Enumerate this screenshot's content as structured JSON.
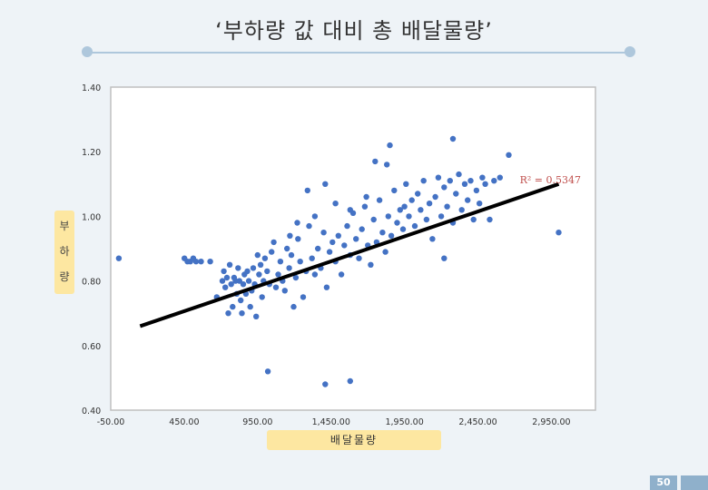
{
  "slide": {
    "title": "‘부하량 값 대비 총 배달물량’",
    "page_number": "50"
  },
  "colors": {
    "point": "#4472c4",
    "trend": "#000000",
    "label_box": "#fde7a1",
    "r2_text": "#c0504d"
  },
  "chart_data": {
    "type": "scatter",
    "title": "‘부하량 값 대비 총 배달물량’",
    "xlabel": "배달물량",
    "ylabel": "부하량",
    "ylabel_chars": [
      "부",
      "하",
      "량"
    ],
    "xlim": [
      -50,
      3250
    ],
    "ylim": [
      0.4,
      1.4
    ],
    "xticks": [
      -50,
      450,
      950,
      1450,
      1950,
      2450,
      2950
    ],
    "xtick_labels": [
      "-50.00",
      "450.00",
      "950.00",
      "1,450.00",
      "1,950.00",
      "2,450.00",
      "2,950.00"
    ],
    "yticks": [
      0.4,
      0.6,
      0.8,
      1.0,
      1.2,
      1.4
    ],
    "ytick_labels": [
      "0.40",
      "0.60",
      "0.80",
      "1.00",
      "1.20",
      "1.40"
    ],
    "trendline": {
      "x": [
        150,
        3000
      ],
      "y": [
        0.66,
        1.1
      ]
    },
    "r2_label": "R² = 0.5347",
    "grid": false,
    "series": [
      {
        "points": [
          [
            5,
            0.87
          ],
          [
            452,
            0.87
          ],
          [
            472,
            0.86
          ],
          [
            492,
            0.86
          ],
          [
            512,
            0.87
          ],
          [
            531,
            0.86
          ],
          [
            565,
            0.86
          ],
          [
            627,
            0.86
          ],
          [
            672,
            0.75
          ],
          [
            710,
            0.8
          ],
          [
            720,
            0.83
          ],
          [
            730,
            0.78
          ],
          [
            741,
            0.81
          ],
          [
            750,
            0.7
          ],
          [
            760,
            0.85
          ],
          [
            770,
            0.79
          ],
          [
            780,
            0.72
          ],
          [
            790,
            0.81
          ],
          [
            800,
            0.8
          ],
          [
            808,
            0.76
          ],
          [
            817,
            0.84
          ],
          [
            826,
            0.8
          ],
          [
            835,
            0.74
          ],
          [
            843,
            0.7
          ],
          [
            852,
            0.79
          ],
          [
            860,
            0.82
          ],
          [
            870,
            0.76
          ],
          [
            880,
            0.83
          ],
          [
            890,
            0.8
          ],
          [
            900,
            0.72
          ],
          [
            910,
            0.77
          ],
          [
            920,
            0.84
          ],
          [
            930,
            0.79
          ],
          [
            940,
            0.69
          ],
          [
            950,
            0.88
          ],
          [
            960,
            0.82
          ],
          [
            970,
            0.85
          ],
          [
            980,
            0.75
          ],
          [
            990,
            0.8
          ],
          [
            1000,
            0.87
          ],
          [
            1015,
            0.83
          ],
          [
            1030,
            0.79
          ],
          [
            1045,
            0.89
          ],
          [
            1060,
            0.92
          ],
          [
            1075,
            0.78
          ],
          [
            1090,
            0.82
          ],
          [
            1105,
            0.86
          ],
          [
            1120,
            0.8
          ],
          [
            1135,
            0.77
          ],
          [
            1150,
            0.9
          ],
          [
            1165,
            0.84
          ],
          [
            1180,
            0.88
          ],
          [
            1195,
            0.72
          ],
          [
            1210,
            0.81
          ],
          [
            1225,
            0.93
          ],
          [
            1240,
            0.86
          ],
          [
            1260,
            0.75
          ],
          [
            1280,
            0.83
          ],
          [
            1300,
            0.97
          ],
          [
            1320,
            0.87
          ],
          [
            1340,
            0.82
          ],
          [
            1360,
            0.9
          ],
          [
            1380,
            0.84
          ],
          [
            1400,
            0.95
          ],
          [
            1420,
            0.78
          ],
          [
            1440,
            0.89
          ],
          [
            1460,
            0.92
          ],
          [
            1480,
            0.86
          ],
          [
            1500,
            0.94
          ],
          [
            1520,
            0.82
          ],
          [
            1540,
            0.91
          ],
          [
            1560,
            0.97
          ],
          [
            1580,
            0.88
          ],
          [
            1600,
            1.01
          ],
          [
            1620,
            0.93
          ],
          [
            1640,
            0.87
          ],
          [
            1660,
            0.96
          ],
          [
            1680,
            1.03
          ],
          [
            1700,
            0.91
          ],
          [
            1720,
            0.85
          ],
          [
            1740,
            0.99
          ],
          [
            1760,
            0.92
          ],
          [
            1780,
            1.05
          ],
          [
            1800,
            0.95
          ],
          [
            1820,
            0.89
          ],
          [
            1840,
            1.0
          ],
          [
            1860,
            0.94
          ],
          [
            1880,
            1.08
          ],
          [
            1900,
            0.98
          ],
          [
            1920,
            1.02
          ],
          [
            1940,
            0.96
          ],
          [
            1960,
            1.1
          ],
          [
            1980,
            1.0
          ],
          [
            2000,
            1.05
          ],
          [
            2020,
            0.97
          ],
          [
            2040,
            1.07
          ],
          [
            2060,
            1.02
          ],
          [
            2080,
            1.11
          ],
          [
            2100,
            0.99
          ],
          [
            2120,
            1.04
          ],
          [
            2140,
            0.93
          ],
          [
            2160,
            1.06
          ],
          [
            2180,
            1.12
          ],
          [
            2200,
            1.0
          ],
          [
            2220,
            1.09
          ],
          [
            2240,
            1.03
          ],
          [
            2260,
            1.11
          ],
          [
            2280,
            0.98
          ],
          [
            2300,
            1.07
          ],
          [
            2320,
            1.13
          ],
          [
            2340,
            1.02
          ],
          [
            2360,
            1.1
          ],
          [
            2380,
            1.05
          ],
          [
            2400,
            1.11
          ],
          [
            2420,
            0.99
          ],
          [
            2440,
            1.08
          ],
          [
            2460,
            1.04
          ],
          [
            2480,
            1.12
          ],
          [
            2500,
            1.1
          ],
          [
            2530,
            0.99
          ],
          [
            2560,
            1.11
          ],
          [
            2600,
            1.12
          ],
          [
            2660,
            1.19
          ],
          [
            1020,
            0.52
          ],
          [
            1410,
            0.48
          ],
          [
            1580,
            0.49
          ],
          [
            2280,
            1.24
          ],
          [
            1750,
            1.17
          ],
          [
            1850,
            1.22
          ],
          [
            2220,
            0.87
          ],
          [
            3000,
            0.95
          ],
          [
            1290,
            1.08
          ],
          [
            1410,
            1.1
          ],
          [
            1830,
            1.16
          ],
          [
            1220,
            0.98
          ],
          [
            1170,
            0.94
          ],
          [
            1340,
            1.0
          ],
          [
            1480,
            1.04
          ],
          [
            1580,
            1.02
          ],
          [
            1690,
            1.06
          ],
          [
            1950,
            1.03
          ]
        ]
      }
    ]
  }
}
